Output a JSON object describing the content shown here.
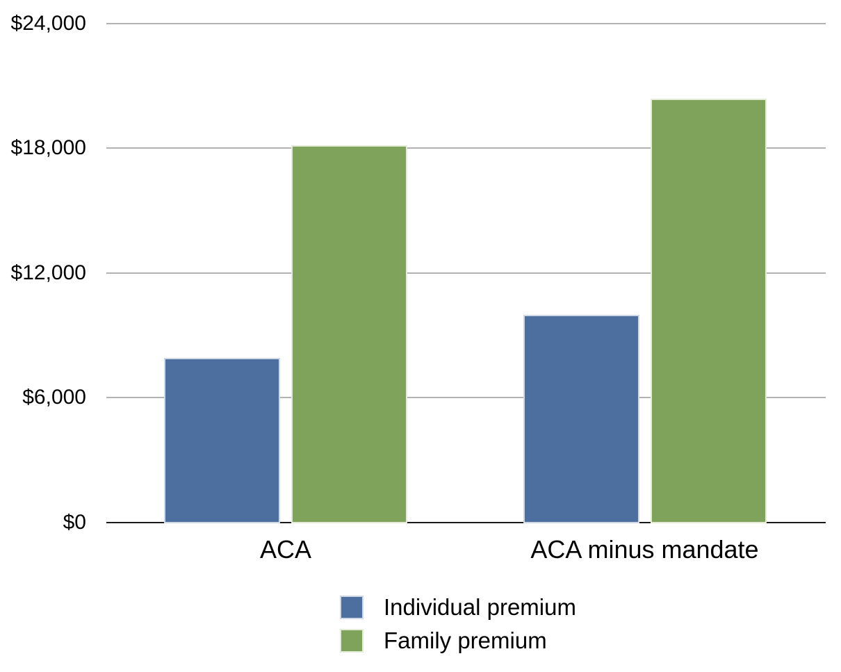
{
  "chart_data": {
    "type": "bar",
    "title": "",
    "xlabel": "",
    "ylabel": "",
    "categories": [
      "ACA",
      "ACA minus mandate"
    ],
    "series": [
      {
        "name": "Individual premium",
        "color": "#4C6F9F",
        "border_color": "#cfd8e4",
        "values": [
          7900,
          10000
        ]
      },
      {
        "name": "Family premium",
        "color": "#7FA35B",
        "border_color": "#e4ecd8",
        "values": [
          18150,
          20400
        ]
      }
    ],
    "ylim": [
      0,
      24000
    ],
    "yticks": [
      {
        "value": 0,
        "label": "$0"
      },
      {
        "value": 6000,
        "label": "$6,000"
      },
      {
        "value": 12000,
        "label": "$12,000"
      },
      {
        "value": 18000,
        "label": "$18,000"
      },
      {
        "value": 24000,
        "label": "$24,000"
      }
    ],
    "grid": "horizontal",
    "legend_position": "bottom",
    "colors": {
      "gridline": "#b2b2b2",
      "axis_line": "#1a1a1a",
      "text": "#000000",
      "background": "#ffffff"
    }
  }
}
